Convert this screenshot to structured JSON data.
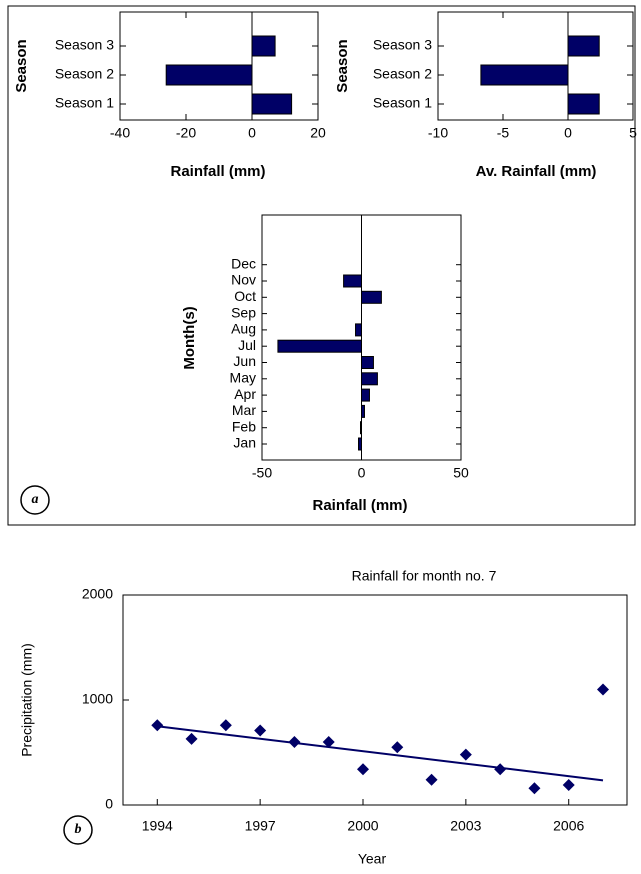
{
  "chart_data": [
    {
      "type": "hbar",
      "xlabel": "Rainfall (mm)",
      "ylabel": "Season",
      "categories": [
        "Season 1",
        "Season 2",
        "Season 3"
      ],
      "values": [
        12,
        -26,
        7
      ],
      "color": "#000066",
      "xlim": [
        -40,
        20
      ],
      "xticks": [
        -40,
        -20,
        0,
        20
      ],
      "zero_line": true
    },
    {
      "type": "hbar",
      "xlabel": "Av. Rainfall (mm)",
      "ylabel": "Season",
      "categories": [
        "Season 1",
        "Season 2",
        "Season 3"
      ],
      "values": [
        2.4,
        -6.7,
        2.4
      ],
      "color": "#000066",
      "xlim": [
        -10,
        5
      ],
      "xticks": [
        -10,
        -5,
        0,
        5
      ],
      "zero_line": true
    },
    {
      "type": "hbar",
      "xlabel": "Rainfall (mm)",
      "ylabel": "Month(s)",
      "annotation": "a",
      "categories": [
        "Jan",
        "Feb",
        "Mar",
        "Apr",
        "May",
        "Jun",
        "Jul",
        "Aug",
        "Sep",
        "Oct",
        "Nov",
        "Dec"
      ],
      "values": [
        -1.5,
        -0.5,
        1.5,
        4,
        8,
        6,
        -42,
        -3,
        0,
        10,
        -9,
        0
      ],
      "color": "#000066",
      "xlim": [
        -50,
        50
      ],
      "xticks": [
        -50,
        0,
        50
      ],
      "zero_line": true
    },
    {
      "type": "scatter",
      "title": "Rainfall for month no. 7",
      "xlabel": "Year",
      "ylabel": "Precipitation (mm)",
      "annotation": "b",
      "x": [
        1994,
        1995,
        1996,
        1997,
        1998,
        1999,
        2000,
        2001,
        2002,
        2003,
        2004,
        2005,
        2006,
        2007
      ],
      "values": [
        760,
        630,
        760,
        710,
        600,
        600,
        340,
        550,
        240,
        480,
        340,
        160,
        190,
        1100
      ],
      "color": "#000066",
      "trend": {
        "x": [
          1994,
          2007
        ],
        "values": [
          750,
          235
        ]
      },
      "xlim": [
        1993,
        2007.7
      ],
      "xticks": [
        1994,
        1997,
        2000,
        2003,
        2006
      ],
      "ylim": [
        0,
        2000
      ],
      "yticks": [
        0,
        1000,
        2000
      ]
    }
  ]
}
